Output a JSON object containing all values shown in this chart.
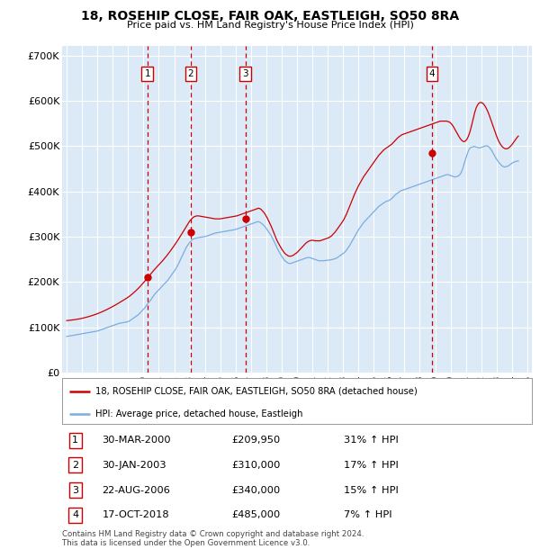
{
  "title": "18, ROSEHIP CLOSE, FAIR OAK, EASTLEIGH, SO50 8RA",
  "subtitle": "Price paid vs. HM Land Registry's House Price Index (HPI)",
  "background_color": "#dce9f7",
  "grid_color": "#ffffff",
  "legend_label_red": "18, ROSEHIP CLOSE, FAIR OAK, EASTLEIGH, SO50 8RA (detached house)",
  "legend_label_blue": "HPI: Average price, detached house, Eastleigh",
  "footer": "Contains HM Land Registry data © Crown copyright and database right 2024.\nThis data is licensed under the Open Government Licence v3.0.",
  "transactions": [
    {
      "num": 1,
      "date": "30-MAR-2000",
      "price": 209950,
      "pct": "31%",
      "year": 2000.25
    },
    {
      "num": 2,
      "date": "30-JAN-2003",
      "price": 310000,
      "pct": "17%",
      "year": 2003.08
    },
    {
      "num": 3,
      "date": "22-AUG-2006",
      "price": 340000,
      "pct": "15%",
      "year": 2006.64
    },
    {
      "num": 4,
      "date": "17-OCT-2018",
      "price": 485000,
      "pct": "7%",
      "year": 2018.79
    }
  ],
  "hpi_years": [
    1995.0,
    1995.083,
    1995.167,
    1995.25,
    1995.333,
    1995.417,
    1995.5,
    1995.583,
    1995.667,
    1995.75,
    1995.833,
    1995.917,
    1996.0,
    1996.083,
    1996.167,
    1996.25,
    1996.333,
    1996.417,
    1996.5,
    1996.583,
    1996.667,
    1996.75,
    1996.833,
    1996.917,
    1997.0,
    1997.083,
    1997.167,
    1997.25,
    1997.333,
    1997.417,
    1997.5,
    1997.583,
    1997.667,
    1997.75,
    1997.833,
    1997.917,
    1998.0,
    1998.083,
    1998.167,
    1998.25,
    1998.333,
    1998.417,
    1998.5,
    1998.583,
    1998.667,
    1998.75,
    1998.833,
    1998.917,
    1999.0,
    1999.083,
    1999.167,
    1999.25,
    1999.333,
    1999.417,
    1999.5,
    1999.583,
    1999.667,
    1999.75,
    1999.833,
    1999.917,
    2000.0,
    2000.083,
    2000.167,
    2000.25,
    2000.333,
    2000.417,
    2000.5,
    2000.583,
    2000.667,
    2000.75,
    2000.833,
    2000.917,
    2001.0,
    2001.083,
    2001.167,
    2001.25,
    2001.333,
    2001.417,
    2001.5,
    2001.583,
    2001.667,
    2001.75,
    2001.833,
    2001.917,
    2002.0,
    2002.083,
    2002.167,
    2002.25,
    2002.333,
    2002.417,
    2002.5,
    2002.583,
    2002.667,
    2002.75,
    2002.833,
    2002.917,
    2003.0,
    2003.083,
    2003.167,
    2003.25,
    2003.333,
    2003.417,
    2003.5,
    2003.583,
    2003.667,
    2003.75,
    2003.833,
    2003.917,
    2004.0,
    2004.083,
    2004.167,
    2004.25,
    2004.333,
    2004.417,
    2004.5,
    2004.583,
    2004.667,
    2004.75,
    2004.833,
    2004.917,
    2005.0,
    2005.083,
    2005.167,
    2005.25,
    2005.333,
    2005.417,
    2005.5,
    2005.583,
    2005.667,
    2005.75,
    2005.833,
    2005.917,
    2006.0,
    2006.083,
    2006.167,
    2006.25,
    2006.333,
    2006.417,
    2006.5,
    2006.583,
    2006.667,
    2006.75,
    2006.833,
    2006.917,
    2007.0,
    2007.083,
    2007.167,
    2007.25,
    2007.333,
    2007.417,
    2007.5,
    2007.583,
    2007.667,
    2007.75,
    2007.833,
    2007.917,
    2008.0,
    2008.083,
    2008.167,
    2008.25,
    2008.333,
    2008.417,
    2008.5,
    2008.583,
    2008.667,
    2008.75,
    2008.833,
    2008.917,
    2009.0,
    2009.083,
    2009.167,
    2009.25,
    2009.333,
    2009.417,
    2009.5,
    2009.583,
    2009.667,
    2009.75,
    2009.833,
    2009.917,
    2010.0,
    2010.083,
    2010.167,
    2010.25,
    2010.333,
    2010.417,
    2010.5,
    2010.583,
    2010.667,
    2010.75,
    2010.833,
    2010.917,
    2011.0,
    2011.083,
    2011.167,
    2011.25,
    2011.333,
    2011.417,
    2011.5,
    2011.583,
    2011.667,
    2011.75,
    2011.833,
    2011.917,
    2012.0,
    2012.083,
    2012.167,
    2012.25,
    2012.333,
    2012.417,
    2012.5,
    2012.583,
    2012.667,
    2012.75,
    2012.833,
    2012.917,
    2013.0,
    2013.083,
    2013.167,
    2013.25,
    2013.333,
    2013.417,
    2013.5,
    2013.583,
    2013.667,
    2013.75,
    2013.833,
    2013.917,
    2014.0,
    2014.083,
    2014.167,
    2014.25,
    2014.333,
    2014.417,
    2014.5,
    2014.583,
    2014.667,
    2014.75,
    2014.833,
    2014.917,
    2015.0,
    2015.083,
    2015.167,
    2015.25,
    2015.333,
    2015.417,
    2015.5,
    2015.583,
    2015.667,
    2015.75,
    2015.833,
    2015.917,
    2016.0,
    2016.083,
    2016.167,
    2016.25,
    2016.333,
    2016.417,
    2016.5,
    2016.583,
    2016.667,
    2016.75,
    2016.833,
    2016.917,
    2017.0,
    2017.083,
    2017.167,
    2017.25,
    2017.333,
    2017.417,
    2017.5,
    2017.583,
    2017.667,
    2017.75,
    2017.833,
    2017.917,
    2018.0,
    2018.083,
    2018.167,
    2018.25,
    2018.333,
    2018.417,
    2018.5,
    2018.583,
    2018.667,
    2018.75,
    2018.833,
    2018.917,
    2019.0,
    2019.083,
    2019.167,
    2019.25,
    2019.333,
    2019.417,
    2019.5,
    2019.583,
    2019.667,
    2019.75,
    2019.833,
    2019.917,
    2020.0,
    2020.083,
    2020.167,
    2020.25,
    2020.333,
    2020.417,
    2020.5,
    2020.583,
    2020.667,
    2020.75,
    2020.833,
    2020.917,
    2021.0,
    2021.083,
    2021.167,
    2021.25,
    2021.333,
    2021.417,
    2021.5,
    2021.583,
    2021.667,
    2021.75,
    2021.833,
    2021.917,
    2022.0,
    2022.083,
    2022.167,
    2022.25,
    2022.333,
    2022.417,
    2022.5,
    2022.583,
    2022.667,
    2022.75,
    2022.833,
    2022.917,
    2023.0,
    2023.083,
    2023.167,
    2023.25,
    2023.333,
    2023.417,
    2023.5,
    2023.583,
    2023.667,
    2023.75,
    2023.833,
    2023.917,
    2024.0,
    2024.083,
    2024.167,
    2024.25,
    2024.333,
    2024.417
  ],
  "hpi_values": [
    80000,
    80500,
    81000,
    81500,
    82000,
    82500,
    83000,
    83500,
    84000,
    84500,
    85000,
    85500,
    86000,
    86500,
    87000,
    87500,
    88000,
    88500,
    89000,
    89500,
    90000,
    90500,
    91000,
    91500,
    92000,
    93000,
    94000,
    95000,
    96000,
    97000,
    98000,
    99000,
    100000,
    101000,
    102000,
    103000,
    104000,
    105000,
    106000,
    107000,
    108000,
    109000,
    109500,
    110000,
    110500,
    111000,
    111500,
    112000,
    113000,
    114000,
    116000,
    118000,
    120000,
    122000,
    124000,
    126000,
    128000,
    131000,
    134000,
    137000,
    140000,
    143000,
    147000,
    151000,
    155000,
    158000,
    162000,
    166000,
    170000,
    174000,
    177000,
    180000,
    183000,
    186000,
    189000,
    192000,
    195000,
    198000,
    201000,
    204000,
    208000,
    212000,
    216000,
    220000,
    224000,
    228000,
    233000,
    238000,
    244000,
    250000,
    256000,
    262000,
    268000,
    274000,
    279000,
    283000,
    287000,
    290000,
    293000,
    295000,
    296000,
    297000,
    297500,
    298000,
    298500,
    299000,
    299500,
    300000,
    300500,
    301000,
    302000,
    303000,
    304000,
    305000,
    306000,
    307000,
    308000,
    308500,
    309000,
    309500,
    310000,
    310500,
    311000,
    311500,
    312000,
    312500,
    313000,
    313500,
    314000,
    314500,
    315000,
    315500,
    316000,
    317000,
    318000,
    319000,
    320000,
    321000,
    322000,
    323000,
    324000,
    325000,
    326000,
    327000,
    328000,
    329000,
    330000,
    331000,
    332000,
    333000,
    333000,
    332000,
    330000,
    328000,
    325000,
    322000,
    318000,
    314000,
    310000,
    306000,
    301000,
    296000,
    290000,
    284000,
    278000,
    272000,
    267000,
    262000,
    257000,
    253000,
    249000,
    246000,
    244000,
    242000,
    241000,
    241000,
    242000,
    243000,
    244000,
    245000,
    246000,
    247000,
    248000,
    249000,
    250000,
    251000,
    252000,
    253000,
    254000,
    254000,
    254000,
    253000,
    252000,
    251000,
    250000,
    249000,
    248000,
    247000,
    247000,
    247000,
    247000,
    247000,
    247500,
    248000,
    248000,
    248500,
    249000,
    249500,
    250000,
    251000,
    252000,
    253000,
    255000,
    257000,
    259000,
    261000,
    263000,
    265000,
    268000,
    272000,
    276000,
    280000,
    285000,
    290000,
    295000,
    300000,
    305000,
    310000,
    315000,
    319000,
    323000,
    327000,
    331000,
    334000,
    337000,
    340000,
    343000,
    346000,
    349000,
    352000,
    355000,
    358000,
    361000,
    364000,
    367000,
    369000,
    371000,
    373000,
    375000,
    377000,
    378000,
    379000,
    380000,
    382000,
    384000,
    387000,
    390000,
    393000,
    395000,
    397000,
    399000,
    401000,
    402000,
    403000,
    404000,
    405000,
    406000,
    407000,
    408000,
    409000,
    410000,
    411000,
    412000,
    413000,
    414000,
    415000,
    416000,
    417000,
    418000,
    419000,
    420000,
    421000,
    422000,
    423000,
    424000,
    425000,
    426000,
    427000,
    428000,
    429000,
    430000,
    431000,
    432000,
    433000,
    434000,
    435000,
    436000,
    437000,
    437000,
    436000,
    435000,
    434000,
    433000,
    432000,
    432000,
    433000,
    434000,
    436000,
    440000,
    446000,
    455000,
    464000,
    473000,
    482000,
    490000,
    495000,
    497000,
    498000,
    499000,
    499000,
    498000,
    497000,
    496000,
    496000,
    497000,
    498000,
    499000,
    500000,
    500500,
    500000,
    498000,
    495000,
    491000,
    486000,
    481000,
    476000,
    471000,
    467000,
    463000,
    460000,
    457000,
    455000,
    454000,
    454000,
    455000,
    456000,
    458000,
    460000,
    462000,
    464000,
    465000,
    466000,
    467000,
    467000
  ],
  "red_values": [
    115000,
    115300,
    115600,
    115900,
    116200,
    116600,
    117000,
    117400,
    117900,
    118400,
    118900,
    119400,
    120000,
    120700,
    121400,
    122100,
    122900,
    123700,
    124500,
    125400,
    126300,
    127200,
    128200,
    129200,
    130200,
    131300,
    132500,
    133700,
    134900,
    136200,
    137500,
    138900,
    140300,
    141700,
    143200,
    144700,
    146200,
    147700,
    149300,
    150900,
    152600,
    154300,
    156000,
    157700,
    159400,
    161100,
    162900,
    164700,
    166600,
    168700,
    170900,
    173200,
    175600,
    178100,
    180700,
    183400,
    186200,
    189100,
    192200,
    195300,
    198600,
    202000,
    205500,
    209000,
    212500,
    215800,
    219100,
    222400,
    225700,
    228900,
    232000,
    235000,
    238000,
    241000,
    244000,
    247200,
    250500,
    253900,
    257400,
    261000,
    264700,
    268500,
    272400,
    276300,
    280400,
    284500,
    288700,
    293000,
    297400,
    301900,
    306500,
    311100,
    315700,
    320400,
    325000,
    329500,
    334000,
    337500,
    340500,
    343000,
    344500,
    345500,
    346000,
    346000,
    345500,
    345000,
    344500,
    344000,
    343500,
    343000,
    342500,
    342000,
    341500,
    341000,
    340500,
    340000,
    339500,
    339500,
    339500,
    339500,
    339500,
    340000,
    340500,
    341000,
    341500,
    342000,
    342500,
    343000,
    343500,
    344000,
    344500,
    345000,
    345500,
    346000,
    347000,
    348000,
    349000,
    350000,
    351000,
    352000,
    353000,
    354000,
    355000,
    356000,
    357000,
    358000,
    359000,
    360000,
    361000,
    362000,
    363000,
    362000,
    360000,
    357000,
    354000,
    350000,
    345000,
    340000,
    334000,
    328000,
    322000,
    315000,
    308000,
    301000,
    294000,
    288000,
    283000,
    278000,
    273000,
    269000,
    265000,
    262000,
    260000,
    258000,
    257000,
    257000,
    258000,
    259000,
    261000,
    263000,
    265000,
    268000,
    271000,
    274000,
    277000,
    280000,
    283000,
    286000,
    288000,
    290000,
    291000,
    292000,
    292000,
    292000,
    291000,
    291000,
    291000,
    291000,
    291000,
    292000,
    293000,
    294000,
    295000,
    296000,
    297000,
    298000,
    300000,
    302000,
    305000,
    308000,
    311000,
    315000,
    319000,
    323000,
    327000,
    331000,
    335000,
    340000,
    346000,
    352000,
    359000,
    366000,
    373000,
    380000,
    387000,
    394000,
    400000,
    406000,
    412000,
    417000,
    422000,
    427000,
    432000,
    436000,
    440000,
    444000,
    448000,
    452000,
    456000,
    460000,
    464000,
    468000,
    472000,
    476000,
    480000,
    483000,
    486000,
    489000,
    492000,
    494000,
    496000,
    498000,
    500000,
    502000,
    504000,
    507000,
    510000,
    513000,
    516000,
    519000,
    521000,
    523000,
    525000,
    526000,
    527000,
    528000,
    529000,
    530000,
    531000,
    532000,
    533000,
    534000,
    535000,
    536000,
    537000,
    538000,
    539000,
    540000,
    541000,
    542000,
    543000,
    544000,
    545000,
    546000,
    547000,
    548000,
    549000,
    550000,
    551000,
    552000,
    553000,
    554000,
    555000,
    555000,
    555000,
    555000,
    555000,
    555000,
    554000,
    553000,
    551000,
    548000,
    544000,
    539000,
    534000,
    529000,
    524000,
    519000,
    515000,
    512000,
    510000,
    510000,
    512000,
    516000,
    522000,
    530000,
    540000,
    552000,
    564000,
    575000,
    584000,
    590000,
    594000,
    596000,
    596000,
    595000,
    592000,
    588000,
    583000,
    577000,
    570000,
    562000,
    554000,
    546000,
    538000,
    530000,
    522000,
    515000,
    509000,
    504000,
    500000,
    497000,
    495000,
    494000,
    494000,
    495000,
    497000,
    500000,
    503000,
    507000,
    511000,
    515000,
    519000,
    522000
  ],
  "xlim": [
    1994.7,
    2025.3
  ],
  "ylim": [
    0,
    720000
  ],
  "yticks": [
    0,
    100000,
    200000,
    300000,
    400000,
    500000,
    600000,
    700000
  ],
  "ytick_labels": [
    "£0",
    "£100K",
    "£200K",
    "£300K",
    "£400K",
    "£500K",
    "£600K",
    "£700K"
  ],
  "xticks": [
    1995,
    1996,
    1997,
    1998,
    1999,
    2000,
    2001,
    2002,
    2003,
    2004,
    2005,
    2006,
    2007,
    2008,
    2009,
    2010,
    2011,
    2012,
    2013,
    2014,
    2015,
    2016,
    2017,
    2018,
    2019,
    2020,
    2021,
    2022,
    2023,
    2024,
    2025
  ],
  "red_color": "#cc0000",
  "blue_color": "#7aade0",
  "dashed_line_color": "#cc0000",
  "table_rows": [
    {
      "num": "1",
      "date": "30-MAR-2000",
      "price": "£209,950",
      "pct": "31% ↑ HPI"
    },
    {
      "num": "2",
      "date": "30-JAN-2003",
      "price": "£310,000",
      "pct": "17% ↑ HPI"
    },
    {
      "num": "3",
      "date": "22-AUG-2006",
      "price": "£340,000",
      "pct": "15% ↑ HPI"
    },
    {
      "num": "4",
      "date": "17-OCT-2018",
      "price": "£485,000",
      "pct": "7% ↑ HPI"
    }
  ]
}
